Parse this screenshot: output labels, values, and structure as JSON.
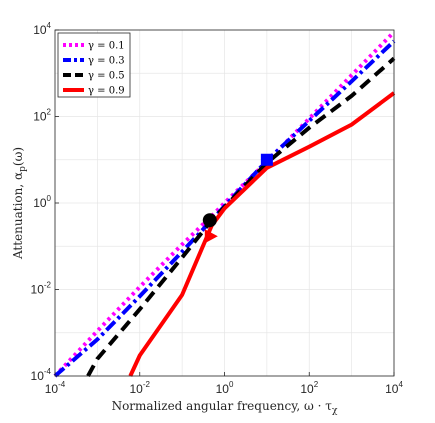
{
  "chart_data": {
    "type": "line",
    "xscale": "log",
    "yscale": "log",
    "xlim": [
      0.0001,
      10000
    ],
    "ylim": [
      0.0001,
      10000
    ],
    "grid": true,
    "legend_position": "top-left",
    "xlabel": "Normalized angular frequency, ω · τ",
    "xlabel_sub": "χ",
    "ylabel": "Attenuation, α",
    "ylabel_sub": "p",
    "ylabel_tail": "(ω)",
    "xticks": [
      {
        "base": "10",
        "exp": "-4",
        "value": 0.0001
      },
      {
        "base": "10",
        "exp": "-2",
        "value": 0.01
      },
      {
        "base": "10",
        "exp": "0",
        "value": 1
      },
      {
        "base": "10",
        "exp": "2",
        "value": 100
      },
      {
        "base": "10",
        "exp": "4",
        "value": 10000
      }
    ],
    "yticks": [
      {
        "base": "10",
        "exp": "-4",
        "value": 0.0001
      },
      {
        "base": "10",
        "exp": "-2",
        "value": 0.01
      },
      {
        "base": "10",
        "exp": "0",
        "value": 1
      },
      {
        "base": "10",
        "exp": "2",
        "value": 100
      },
      {
        "base": "10",
        "exp": "4",
        "value": 10000
      }
    ],
    "series": [
      {
        "name": "γ = 0.1",
        "color": "#ff00ff",
        "style": "dotted",
        "x": [
          0.0001,
          0.001,
          0.01,
          0.1,
          0.5,
          1,
          10,
          100,
          1000,
          10000
        ],
        "y": [
          0.0001,
          0.0011,
          0.0115,
          0.11,
          0.5,
          1.0,
          9.0,
          90,
          900,
          9000
        ]
      },
      {
        "name": "γ = 0.3",
        "color": "#0000ff",
        "style": "dashdot",
        "x": [
          0.0001,
          0.001,
          0.01,
          0.1,
          0.5,
          1,
          10,
          100,
          1000,
          10000
        ],
        "y": [
          0.0001,
          0.0007,
          0.007,
          0.075,
          0.4,
          0.85,
          9.5,
          80,
          650,
          5500
        ]
      },
      {
        "name": "γ = 0.5",
        "color": "#000000",
        "style": "dashed",
        "x": [
          0.0006,
          0.001,
          0.01,
          0.1,
          0.5,
          1,
          10,
          100,
          1000,
          10000
        ],
        "y": [
          0.0001,
          0.00025,
          0.0035,
          0.055,
          0.4,
          0.8,
          8.5,
          55,
          300,
          2200
        ]
      },
      {
        "name": "γ = 0.9",
        "color": "#ff0000",
        "style": "solid",
        "x": [
          0.006,
          0.01,
          0.1,
          0.5,
          1,
          10,
          100,
          1000,
          10000
        ],
        "y": [
          0.0001,
          0.0003,
          0.0075,
          0.3,
          0.75,
          6.5,
          20,
          65,
          350
        ]
      }
    ],
    "markers": [
      {
        "shape": "circle",
        "color": "#000000",
        "x": 0.45,
        "y": 0.4
      },
      {
        "shape": "triangle",
        "color": "#ff0000",
        "x": 0.45,
        "y": 0.17
      },
      {
        "shape": "square",
        "color": "#0000ff",
        "x": 10,
        "y": 10
      }
    ]
  }
}
